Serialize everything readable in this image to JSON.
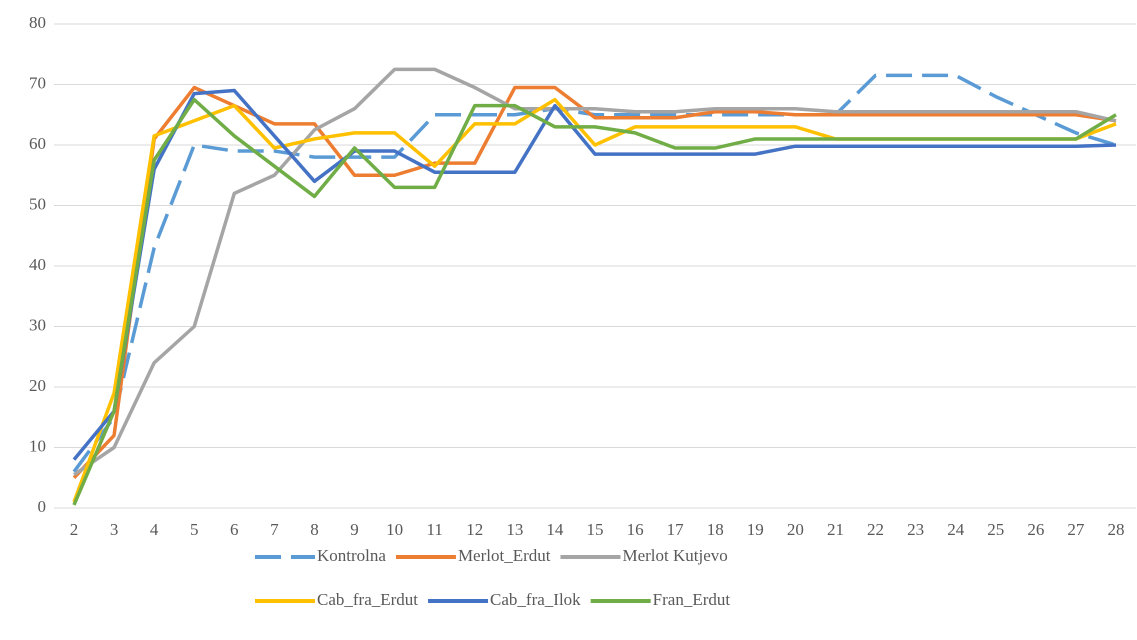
{
  "chart_data": {
    "type": "line",
    "categories": [
      "2",
      "3",
      "4",
      "5",
      "6",
      "7",
      "8",
      "9",
      "10",
      "11",
      "12",
      "13",
      "14",
      "15",
      "16",
      "17",
      "18",
      "19",
      "20",
      "21",
      "22",
      "23",
      "24",
      "25",
      "26",
      "27",
      "28"
    ],
    "ylim": [
      0,
      80
    ],
    "yticks": [
      0,
      10,
      20,
      30,
      40,
      50,
      60,
      70,
      80
    ],
    "grid": true,
    "legend": "bottom",
    "series": [
      {
        "name": "Kontrolna",
        "color": "#5b9bd5",
        "dashed": true,
        "values": [
          6,
          15,
          43,
          60,
          59,
          59,
          58,
          58,
          58,
          65,
          65,
          65,
          66,
          65,
          65,
          65,
          65,
          65,
          65,
          65,
          71.5,
          71.5,
          71.5,
          68,
          65,
          62,
          60
        ]
      },
      {
        "name": "Merlot_Erdut",
        "color": "#ed7d31",
        "values": [
          5,
          12,
          61,
          69.5,
          66.5,
          63.5,
          63.5,
          55,
          55,
          57,
          57,
          69.5,
          69.5,
          64.5,
          64.5,
          64.5,
          65.5,
          65.5,
          65,
          65,
          65,
          65,
          65,
          65,
          65,
          65,
          64
        ]
      },
      {
        "name": "Merlot Kutjevo",
        "color": "#a5a5a5",
        "values": [
          5.5,
          10,
          24,
          30,
          52,
          55,
          62.5,
          66,
          72.5,
          72.5,
          69.5,
          66,
          66,
          66,
          65.5,
          65.5,
          66,
          66,
          66,
          65.5,
          65.5,
          65.5,
          65.5,
          65.5,
          65.5,
          65.5,
          64
        ]
      },
      {
        "name": "Cab_fra_Erdut",
        "color": "#ffc000",
        "values": [
          1,
          19,
          61.5,
          64,
          66.5,
          59.5,
          61,
          62,
          62,
          56.5,
          63.5,
          63.5,
          67.5,
          60,
          63,
          63,
          63,
          63,
          63,
          61,
          61,
          61,
          61,
          61,
          61,
          61,
          63.5
        ]
      },
      {
        "name": "Cab_fra_Ilok",
        "color": "#4472c4",
        "values": [
          8,
          16,
          56,
          68.5,
          69,
          61.5,
          54,
          59,
          59,
          55.5,
          55.5,
          55.5,
          66.5,
          58.5,
          58.5,
          58.5,
          58.5,
          58.5,
          59.8,
          59.8,
          59.8,
          59.8,
          59.8,
          59.8,
          59.8,
          59.8,
          60
        ]
      },
      {
        "name": "Fran_Erdut",
        "color": "#70ad47",
        "values": [
          0.5,
          16,
          57.5,
          67.5,
          61.5,
          56.5,
          51.5,
          59.5,
          53,
          53,
          66.5,
          66.5,
          63,
          63,
          62,
          59.5,
          59.5,
          61,
          61,
          61,
          61,
          61,
          61,
          61,
          61,
          61,
          65
        ]
      }
    ]
  }
}
